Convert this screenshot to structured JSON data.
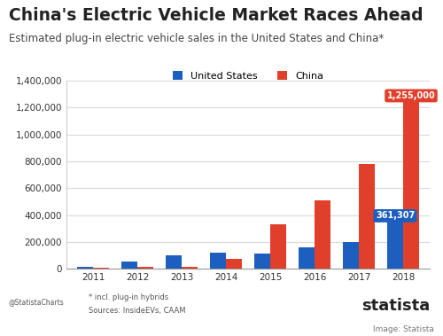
{
  "chart_data": {
    "type": "bar",
    "title": "China's Electric Vehicle Market Races Ahead",
    "subtitle": "Estimated plug-in electric vehicle sales in the United States and China*",
    "categories": [
      "2011",
      "2012",
      "2013",
      "2014",
      "2015",
      "2016",
      "2017",
      "2018"
    ],
    "series": [
      {
        "name": "United States",
        "color": "#1d5fbf",
        "values": [
          17000,
          53000,
          97000,
          119000,
          115000,
          158000,
          199000,
          361307
        ],
        "value_labels": [
          null,
          null,
          null,
          null,
          null,
          null,
          null,
          "361,307"
        ]
      },
      {
        "name": "China",
        "color": "#e0402b",
        "values": [
          8000,
          12000,
          17000,
          75000,
          331000,
          507000,
          777000,
          1255000
        ],
        "value_labels": [
          null,
          null,
          null,
          null,
          null,
          null,
          null,
          "1,255,000"
        ]
      }
    ],
    "ylim": [
      0,
      1400000
    ],
    "yticks": [
      0,
      {
        "value": 200000,
        "label": "200,000"
      },
      {
        "value": 400000,
        "label": "400,000"
      },
      {
        "value": 600000,
        "label": "600,000"
      },
      {
        "value": 800000,
        "label": "800,000"
      },
      {
        "value": 1000000,
        "label": "1,000,000"
      },
      {
        "value": 1200000,
        "label": "1,200,000"
      },
      {
        "value": 1400000,
        "label": "1,400,000"
      }
    ],
    "grid": true,
    "legend": "upper center",
    "data_labels": true,
    "footnote": "* incl. plug-in hybrids",
    "source": "Sources: InsideEVs, CAAM",
    "handle": "@StatistaCharts",
    "brand": "statista",
    "image_credit": "Image: Statista"
  }
}
